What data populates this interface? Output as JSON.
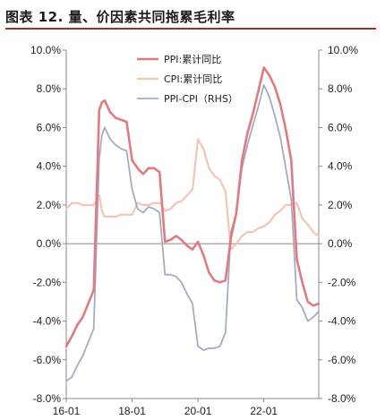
{
  "title": "图表 12. 量、价因素共同拖累毛利率",
  "chart_data": {
    "type": "line",
    "left_axis": {
      "ticks": [
        "-8.0%",
        "-6.0%",
        "-4.0%",
        "-2.0%",
        "0.0%",
        "2.0%",
        "4.0%",
        "6.0%",
        "8.0%",
        "10.0%"
      ],
      "range": [
        -8,
        10
      ]
    },
    "right_axis": {
      "ticks": [
        "-8.0%",
        "-6.0%",
        "-4.0%",
        "-2.0%",
        "0.0%",
        "2.0%",
        "4.0%",
        "6.0%",
        "8.0%",
        "10.0%"
      ],
      "range": [
        -8,
        10
      ]
    },
    "x_ticks": [
      "16-01",
      "18-01",
      "20-01",
      "22-01"
    ],
    "x_range": [
      "2016-01",
      "2023-09"
    ],
    "series": [
      {
        "name": "PPI:累计同比",
        "color": "#e07a80",
        "width": 2.6,
        "axis": "left",
        "values": [
          [
            "2016-01",
            -5.3
          ],
          [
            "2016-03",
            -4.8
          ],
          [
            "2016-05",
            -4.2
          ],
          [
            "2016-07",
            -3.8
          ],
          [
            "2016-09",
            -3.1
          ],
          [
            "2016-11",
            -2.4
          ],
          [
            "2017-01",
            6.9
          ],
          [
            "2017-02",
            7.3
          ],
          [
            "2017-03",
            7.4
          ],
          [
            "2017-05",
            6.8
          ],
          [
            "2017-07",
            6.5
          ],
          [
            "2017-09",
            6.4
          ],
          [
            "2017-11",
            6.3
          ],
          [
            "2018-01",
            4.3
          ],
          [
            "2018-03",
            3.9
          ],
          [
            "2018-05",
            3.6
          ],
          [
            "2018-07",
            3.9
          ],
          [
            "2018-09",
            3.9
          ],
          [
            "2018-11",
            3.7
          ],
          [
            "2019-01",
            0.1
          ],
          [
            "2019-03",
            0.2
          ],
          [
            "2019-05",
            0.4
          ],
          [
            "2019-07",
            0.2
          ],
          [
            "2019-09",
            -0.1
          ],
          [
            "2019-11",
            -0.3
          ],
          [
            "2020-01",
            0.1
          ],
          [
            "2020-03",
            -0.6
          ],
          [
            "2020-05",
            -1.5
          ],
          [
            "2020-07",
            -1.9
          ],
          [
            "2020-09",
            -2.0
          ],
          [
            "2020-11",
            -1.9
          ],
          [
            "2021-01",
            0.3
          ],
          [
            "2021-03",
            1.6
          ],
          [
            "2021-05",
            4.3
          ],
          [
            "2021-07",
            5.7
          ],
          [
            "2021-09",
            6.7
          ],
          [
            "2021-11",
            7.9
          ],
          [
            "2022-01",
            9.1
          ],
          [
            "2022-03",
            8.7
          ],
          [
            "2022-05",
            8.1
          ],
          [
            "2022-07",
            7.2
          ],
          [
            "2022-09",
            5.9
          ],
          [
            "2022-11",
            4.3
          ],
          [
            "2023-01",
            -0.8
          ],
          [
            "2023-03",
            -2.0
          ],
          [
            "2023-05",
            -3.0
          ],
          [
            "2023-07",
            -3.2
          ],
          [
            "2023-09",
            -3.1
          ]
        ]
      },
      {
        "name": "CPI:累计同比",
        "color": "#f4c4b4",
        "width": 2.2,
        "axis": "left",
        "values": [
          [
            "2016-01",
            1.8
          ],
          [
            "2016-03",
            2.1
          ],
          [
            "2016-05",
            2.1
          ],
          [
            "2016-07",
            2.0
          ],
          [
            "2016-09",
            2.0
          ],
          [
            "2016-11",
            2.0
          ],
          [
            "2017-01",
            2.5
          ],
          [
            "2017-02",
            1.7
          ],
          [
            "2017-03",
            1.4
          ],
          [
            "2017-05",
            1.4
          ],
          [
            "2017-07",
            1.4
          ],
          [
            "2017-09",
            1.5
          ],
          [
            "2017-11",
            1.5
          ],
          [
            "2018-01",
            1.5
          ],
          [
            "2018-03",
            2.1
          ],
          [
            "2018-05",
            2.0
          ],
          [
            "2018-07",
            2.0
          ],
          [
            "2018-09",
            2.1
          ],
          [
            "2018-11",
            2.1
          ],
          [
            "2019-01",
            1.7
          ],
          [
            "2019-03",
            1.8
          ],
          [
            "2019-05",
            2.1
          ],
          [
            "2019-07",
            2.2
          ],
          [
            "2019-09",
            2.5
          ],
          [
            "2019-11",
            2.8
          ],
          [
            "2020-01",
            5.4
          ],
          [
            "2020-03",
            4.9
          ],
          [
            "2020-05",
            3.9
          ],
          [
            "2020-07",
            3.5
          ],
          [
            "2020-09",
            3.3
          ],
          [
            "2020-11",
            2.7
          ],
          [
            "2021-01",
            -0.3
          ],
          [
            "2021-03",
            0.0
          ],
          [
            "2021-05",
            0.4
          ],
          [
            "2021-07",
            0.6
          ],
          [
            "2021-09",
            0.6
          ],
          [
            "2021-11",
            0.8
          ],
          [
            "2022-01",
            0.9
          ],
          [
            "2022-03",
            1.1
          ],
          [
            "2022-05",
            1.5
          ],
          [
            "2022-07",
            1.7
          ],
          [
            "2022-09",
            2.0
          ],
          [
            "2022-11",
            2.0
          ],
          [
            "2023-01",
            2.1
          ],
          [
            "2023-03",
            1.3
          ],
          [
            "2023-05",
            1.0
          ],
          [
            "2023-07",
            0.6
          ],
          [
            "2023-09",
            0.4
          ]
        ]
      },
      {
        "name": "PPI-CPI（RHS）",
        "color": "#a3acc4",
        "width": 1.8,
        "axis": "right",
        "values": [
          [
            "2016-01",
            -7.1
          ],
          [
            "2016-03",
            -6.9
          ],
          [
            "2016-05",
            -6.3
          ],
          [
            "2016-07",
            -5.8
          ],
          [
            "2016-09",
            -5.1
          ],
          [
            "2016-11",
            -4.4
          ],
          [
            "2017-01",
            4.4
          ],
          [
            "2017-02",
            5.6
          ],
          [
            "2017-03",
            6.0
          ],
          [
            "2017-05",
            5.4
          ],
          [
            "2017-07",
            5.1
          ],
          [
            "2017-09",
            4.9
          ],
          [
            "2017-11",
            4.8
          ],
          [
            "2018-01",
            2.8
          ],
          [
            "2018-03",
            1.8
          ],
          [
            "2018-05",
            1.6
          ],
          [
            "2018-07",
            1.9
          ],
          [
            "2018-09",
            1.8
          ],
          [
            "2018-11",
            1.6
          ],
          [
            "2019-01",
            -1.6
          ],
          [
            "2019-03",
            -1.6
          ],
          [
            "2019-05",
            -1.7
          ],
          [
            "2019-07",
            -2.0
          ],
          [
            "2019-09",
            -2.6
          ],
          [
            "2019-11",
            -3.1
          ],
          [
            "2020-01",
            -5.3
          ],
          [
            "2020-03",
            -5.5
          ],
          [
            "2020-05",
            -5.4
          ],
          [
            "2020-07",
            -5.4
          ],
          [
            "2020-09",
            -5.3
          ],
          [
            "2020-11",
            -4.6
          ],
          [
            "2021-01",
            0.6
          ],
          [
            "2021-03",
            1.6
          ],
          [
            "2021-05",
            3.9
          ],
          [
            "2021-07",
            5.1
          ],
          [
            "2021-09",
            6.1
          ],
          [
            "2021-11",
            7.1
          ],
          [
            "2022-01",
            8.2
          ],
          [
            "2022-03",
            7.6
          ],
          [
            "2022-05",
            6.6
          ],
          [
            "2022-07",
            5.5
          ],
          [
            "2022-09",
            3.9
          ],
          [
            "2022-11",
            2.3
          ],
          [
            "2023-01",
            -2.9
          ],
          [
            "2023-03",
            -3.3
          ],
          [
            "2023-05",
            -4.0
          ],
          [
            "2023-07",
            -3.8
          ],
          [
            "2023-09",
            -3.5
          ]
        ]
      }
    ],
    "legend": {
      "position": "top-center",
      "entries": [
        "PPI:累计同比",
        "CPI:累计同比",
        "PPI-CPI（RHS）"
      ]
    }
  }
}
